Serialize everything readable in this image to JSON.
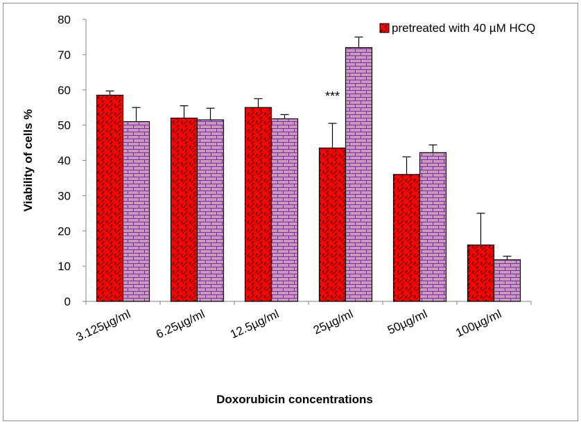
{
  "chart_data": {
    "type": "bar",
    "title": "",
    "xlabel": "Doxorubicin concentrations",
    "ylabel": "Viability of cells %",
    "ylim": [
      0,
      80
    ],
    "yticks": [
      0,
      10,
      20,
      30,
      40,
      50,
      60,
      70,
      80
    ],
    "categories": [
      "3.125µg/ml",
      "6.25µg/ml",
      "12.5µg/ml",
      "25µg/ml",
      "50µg/ml",
      "100µg/ml"
    ],
    "series": [
      {
        "name": "",
        "color": "#ff0000",
        "pattern": "zigzag",
        "values": [
          58.5,
          52.0,
          55.0,
          43.5,
          36.0,
          16.0
        ],
        "error": [
          1.2,
          3.5,
          2.5,
          7.0,
          5.0,
          9.0
        ]
      },
      {
        "name": "pretreated with 40 µM HCQ",
        "color": "#cc99bb",
        "pattern": "brick",
        "values": [
          51.0,
          51.5,
          51.8,
          72.0,
          42.2,
          11.8
        ],
        "error": [
          4.0,
          3.3,
          1.2,
          3.0,
          2.2,
          1.0
        ]
      }
    ],
    "annotations": [
      {
        "text": "***",
        "category": "25µg/ml",
        "value": 57
      }
    ],
    "legend": {
      "position": "top-right",
      "entries": [
        "pretreated with 40 µM HCQ"
      ]
    },
    "grid": false
  }
}
